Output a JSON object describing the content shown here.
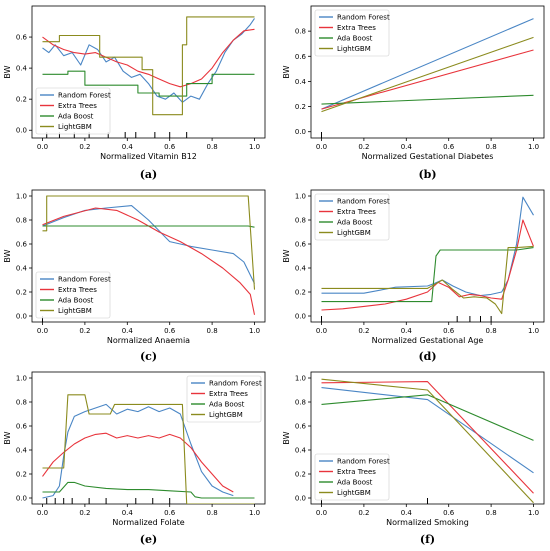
{
  "colors": {
    "Random Forest": "#4a86c5",
    "Extra Trees": "#e8343c",
    "Ada Boost": "#2e8b2e",
    "LightGBM": "#8b8b1e"
  },
  "chart_data": [
    {
      "id": "a",
      "type": "line",
      "caption": "(a)",
      "xlabel": "Normalized Vitamin B12",
      "ylabel": "BW",
      "xlim": [
        0,
        1
      ],
      "ylim": [
        -0.05,
        0.8
      ],
      "xticks": [
        "0.0",
        "0.2",
        "0.4",
        "0.6",
        "0.8",
        "1.0"
      ],
      "xtick_values": [
        0,
        0.2,
        0.4,
        0.6,
        0.8,
        1.0
      ],
      "yticks": [
        "0.0",
        "0.2",
        "0.4",
        "0.6"
      ],
      "ytick_values": [
        0,
        0.2,
        0.4,
        0.6
      ],
      "legend_position": "bottom-left",
      "rug": [
        0.02,
        0.08,
        0.15,
        0.22,
        0.31,
        0.39,
        0.44,
        0.53,
        0.6,
        0.68
      ],
      "series": [
        {
          "name": "Random Forest",
          "x": [
            0,
            0.03,
            0.06,
            0.1,
            0.14,
            0.18,
            0.22,
            0.26,
            0.3,
            0.34,
            0.38,
            0.42,
            0.46,
            0.5,
            0.54,
            0.58,
            0.62,
            0.66,
            0.7,
            0.74,
            0.78,
            0.82,
            0.86,
            0.9,
            0.94,
            0.98,
            1.0
          ],
          "y": [
            0.53,
            0.5,
            0.55,
            0.48,
            0.5,
            0.42,
            0.55,
            0.52,
            0.44,
            0.47,
            0.38,
            0.34,
            0.36,
            0.3,
            0.22,
            0.2,
            0.24,
            0.18,
            0.22,
            0.2,
            0.3,
            0.38,
            0.5,
            0.58,
            0.62,
            0.68,
            0.72
          ]
        },
        {
          "name": "Extra Trees",
          "x": [
            0,
            0.05,
            0.1,
            0.15,
            0.2,
            0.25,
            0.3,
            0.35,
            0.4,
            0.45,
            0.5,
            0.55,
            0.6,
            0.65,
            0.7,
            0.75,
            0.8,
            0.85,
            0.9,
            0.95,
            1.0
          ],
          "y": [
            0.6,
            0.55,
            0.52,
            0.5,
            0.49,
            0.5,
            0.47,
            0.44,
            0.42,
            0.38,
            0.36,
            0.33,
            0.3,
            0.28,
            0.3,
            0.33,
            0.4,
            0.5,
            0.58,
            0.64,
            0.65
          ]
        },
        {
          "name": "Ada Boost",
          "x": [
            0,
            0.12,
            0.12,
            0.2,
            0.2,
            0.45,
            0.45,
            0.55,
            0.55,
            0.68,
            0.68,
            0.8,
            0.8,
            1.0
          ],
          "y": [
            0.36,
            0.36,
            0.38,
            0.38,
            0.29,
            0.29,
            0.24,
            0.24,
            0.22,
            0.22,
            0.3,
            0.3,
            0.36,
            0.36
          ]
        },
        {
          "name": "LightGBM",
          "x": [
            0,
            0.08,
            0.08,
            0.27,
            0.27,
            0.47,
            0.47,
            0.52,
            0.52,
            0.66,
            0.66,
            0.68,
            0.68,
            1.0
          ],
          "y": [
            0.57,
            0.57,
            0.61,
            0.61,
            0.47,
            0.47,
            0.39,
            0.39,
            0.1,
            0.1,
            0.55,
            0.55,
            0.73,
            0.73
          ]
        }
      ]
    },
    {
      "id": "b",
      "type": "line",
      "caption": "(b)",
      "xlabel": "Normalized Gestational Diabetes",
      "ylabel": "BW",
      "xlim": [
        0,
        1
      ],
      "ylim": [
        -0.05,
        1.0
      ],
      "xticks": [
        "0.0",
        "0.2",
        "0.4",
        "0.6",
        "0.8",
        "1.0"
      ],
      "xtick_values": [
        0,
        0.2,
        0.4,
        0.6,
        0.8,
        1.0
      ],
      "yticks": [
        "0.0",
        "0.2",
        "0.4",
        "0.6",
        "0.8"
      ],
      "ytick_values": [
        0,
        0.2,
        0.4,
        0.6,
        0.8
      ],
      "legend_position": "top-left",
      "rug": [
        0.0
      ],
      "series": [
        {
          "name": "Random Forest",
          "x": [
            0,
            1
          ],
          "y": [
            0.18,
            0.9
          ]
        },
        {
          "name": "Extra Trees",
          "x": [
            0,
            1
          ],
          "y": [
            0.18,
            0.65
          ]
        },
        {
          "name": "Ada Boost",
          "x": [
            0,
            1
          ],
          "y": [
            0.22,
            0.29
          ]
        },
        {
          "name": "LightGBM",
          "x": [
            0,
            1
          ],
          "y": [
            0.16,
            0.75
          ]
        }
      ]
    },
    {
      "id": "c",
      "type": "line",
      "caption": "(c)",
      "xlabel": "Normalized Anaemia",
      "ylabel": "BW",
      "xlim": [
        0,
        1
      ],
      "ylim": [
        -0.05,
        1.05
      ],
      "xticks": [
        "0.0",
        "0.2",
        "0.4",
        "0.6",
        "0.8",
        "1.0"
      ],
      "xtick_values": [
        0,
        0.2,
        0.4,
        0.6,
        0.8,
        1.0
      ],
      "yticks": [
        "0.0",
        "0.2",
        "0.4",
        "0.6",
        "0.8",
        "1.0"
      ],
      "ytick_values": [
        0,
        0.2,
        0.4,
        0.6,
        0.8,
        1.0
      ],
      "legend_position": "bottom-left",
      "rug": [
        0.0
      ],
      "series": [
        {
          "name": "Random Forest",
          "x": [
            0,
            0.1,
            0.2,
            0.3,
            0.42,
            0.5,
            0.6,
            0.7,
            0.8,
            0.9,
            0.95,
            1.0
          ],
          "y": [
            0.75,
            0.82,
            0.88,
            0.9,
            0.92,
            0.8,
            0.62,
            0.58,
            0.55,
            0.52,
            0.45,
            0.27
          ]
        },
        {
          "name": "Extra Trees",
          "x": [
            0,
            0.1,
            0.25,
            0.35,
            0.45,
            0.55,
            0.65,
            0.75,
            0.85,
            0.93,
            0.98,
            1.0
          ],
          "y": [
            0.76,
            0.83,
            0.9,
            0.88,
            0.8,
            0.7,
            0.62,
            0.52,
            0.4,
            0.28,
            0.18,
            0.01
          ]
        },
        {
          "name": "Ada Boost",
          "x": [
            0,
            0.97,
            1.0
          ],
          "y": [
            0.75,
            0.75,
            0.74
          ]
        },
        {
          "name": "LightGBM",
          "x": [
            0,
            0.02,
            0.02,
            0.97,
            1.0
          ],
          "y": [
            0.71,
            0.71,
            1.0,
            1.0,
            0.22
          ]
        }
      ]
    },
    {
      "id": "d",
      "type": "line",
      "caption": "(d)",
      "xlabel": "Normalized Gestational Age",
      "ylabel": "BW",
      "xlim": [
        0,
        1
      ],
      "ylim": [
        -0.05,
        1.05
      ],
      "xticks": [
        "0.0",
        "0.2",
        "0.4",
        "0.6",
        "0.8",
        "1.0"
      ],
      "xtick_values": [
        0,
        0.2,
        0.4,
        0.6,
        0.8,
        1.0
      ],
      "yticks": [
        "0.0",
        "0.2",
        "0.4",
        "0.6",
        "0.8",
        "1.0"
      ],
      "ytick_values": [
        0,
        0.2,
        0.4,
        0.6,
        0.8,
        1.0
      ],
      "legend_position": "top-left",
      "rug": [
        0.0,
        0.64,
        0.7,
        0.75,
        0.8
      ],
      "series": [
        {
          "name": "Random Forest",
          "x": [
            0,
            0.2,
            0.35,
            0.5,
            0.53,
            0.57,
            0.62,
            0.68,
            0.75,
            0.8,
            0.85,
            0.88,
            0.92,
            0.95,
            1.0
          ],
          "y": [
            0.19,
            0.19,
            0.24,
            0.25,
            0.27,
            0.3,
            0.25,
            0.2,
            0.17,
            0.18,
            0.2,
            0.3,
            0.6,
            0.99,
            0.84
          ]
        },
        {
          "name": "Extra Trees",
          "x": [
            0,
            0.1,
            0.2,
            0.3,
            0.4,
            0.5,
            0.55,
            0.6,
            0.65,
            0.7,
            0.75,
            0.8,
            0.85,
            0.88,
            0.92,
            0.95,
            1.0
          ],
          "y": [
            0.05,
            0.06,
            0.08,
            0.1,
            0.14,
            0.2,
            0.28,
            0.24,
            0.16,
            0.18,
            0.17,
            0.15,
            0.14,
            0.3,
            0.55,
            0.8,
            0.58
          ]
        },
        {
          "name": "Ada Boost",
          "x": [
            0,
            0.52,
            0.54,
            0.56,
            0.9,
            0.92,
            1.0
          ],
          "y": [
            0.12,
            0.12,
            0.5,
            0.55,
            0.55,
            0.55,
            0.57
          ]
        },
        {
          "name": "LightGBM",
          "x": [
            0,
            0.5,
            0.53,
            0.57,
            0.62,
            0.67,
            0.72,
            0.78,
            0.82,
            0.85,
            0.88,
            0.92,
            1.0
          ],
          "y": [
            0.23,
            0.23,
            0.26,
            0.3,
            0.22,
            0.15,
            0.16,
            0.15,
            0.1,
            0.02,
            0.57,
            0.57,
            0.58
          ]
        }
      ]
    },
    {
      "id": "e",
      "type": "line",
      "caption": "(e)",
      "xlabel": "Normalized Folate",
      "ylabel": "BW",
      "xlim": [
        0,
        1
      ],
      "ylim": [
        -0.05,
        1.05
      ],
      "xticks": [
        "0.0",
        "0.2",
        "0.4",
        "0.6",
        "0.8",
        "1.0"
      ],
      "xtick_values": [
        0,
        0.2,
        0.4,
        0.6,
        0.8,
        1.0
      ],
      "yticks": [
        "0.0",
        "0.2",
        "0.4",
        "0.6",
        "0.8",
        "1.0"
      ],
      "ytick_values": [
        0,
        0.2,
        0.4,
        0.6,
        0.8,
        1.0
      ],
      "legend_position": "top-right",
      "rug": [
        0.02,
        0.06,
        0.1,
        0.14,
        0.22,
        0.3,
        0.44,
        0.52,
        0.6
      ],
      "series": [
        {
          "name": "Random Forest",
          "x": [
            0,
            0.05,
            0.08,
            0.1,
            0.12,
            0.15,
            0.2,
            0.25,
            0.3,
            0.35,
            0.4,
            0.45,
            0.5,
            0.55,
            0.6,
            0.65,
            0.7,
            0.75,
            0.8,
            0.85,
            0.9
          ],
          "y": [
            0.0,
            0.02,
            0.1,
            0.35,
            0.55,
            0.68,
            0.72,
            0.75,
            0.78,
            0.7,
            0.74,
            0.72,
            0.76,
            0.72,
            0.75,
            0.7,
            0.45,
            0.22,
            0.1,
            0.05,
            0.02
          ]
        },
        {
          "name": "Extra Trees",
          "x": [
            0,
            0.05,
            0.1,
            0.15,
            0.2,
            0.25,
            0.3,
            0.35,
            0.4,
            0.45,
            0.5,
            0.55,
            0.6,
            0.65,
            0.7,
            0.75,
            0.8,
            0.85,
            0.9
          ],
          "y": [
            0.18,
            0.3,
            0.38,
            0.45,
            0.5,
            0.53,
            0.54,
            0.5,
            0.52,
            0.5,
            0.52,
            0.5,
            0.53,
            0.5,
            0.42,
            0.3,
            0.2,
            0.1,
            0.05
          ]
        },
        {
          "name": "Ada Boost",
          "x": [
            0,
            0.08,
            0.12,
            0.15,
            0.2,
            0.3,
            0.4,
            0.5,
            0.6,
            0.7,
            0.72,
            0.75,
            0.8,
            0.9,
            1.0
          ],
          "y": [
            0.05,
            0.05,
            0.13,
            0.13,
            0.1,
            0.08,
            0.07,
            0.07,
            0.06,
            0.05,
            0.01,
            0.0,
            0.0,
            0.0,
            0.0
          ]
        },
        {
          "name": "LightGBM",
          "x": [
            0,
            0.1,
            0.12,
            0.2,
            0.22,
            0.32,
            0.34,
            0.66,
            0.68,
            1.0
          ],
          "y": [
            0.25,
            0.25,
            0.86,
            0.86,
            0.7,
            0.7,
            0.78,
            0.78,
            -0.05,
            -0.05
          ]
        }
      ]
    },
    {
      "id": "f",
      "type": "line",
      "caption": "(f)",
      "xlabel": "Normalized Smoking",
      "ylabel": "BW",
      "xlim": [
        0,
        1
      ],
      "ylim": [
        -0.05,
        1.05
      ],
      "xticks": [
        "0.0",
        "0.2",
        "0.4",
        "0.6",
        "0.8",
        "1.0"
      ],
      "xtick_values": [
        0,
        0.2,
        0.4,
        0.6,
        0.8,
        1.0
      ],
      "yticks": [
        "0.0",
        "0.2",
        "0.4",
        "0.6",
        "0.8",
        "1.0"
      ],
      "ytick_values": [
        0,
        0.2,
        0.4,
        0.6,
        0.8,
        1.0
      ],
      "legend_position": "bottom-left",
      "rug": [
        0.0,
        0.5
      ],
      "series": [
        {
          "name": "Random Forest",
          "x": [
            0,
            0.5,
            1.0
          ],
          "y": [
            0.92,
            0.82,
            0.21
          ]
        },
        {
          "name": "Extra Trees",
          "x": [
            0,
            0.5,
            1.0
          ],
          "y": [
            0.96,
            0.97,
            0.04
          ]
        },
        {
          "name": "Ada Boost",
          "x": [
            0,
            0.5,
            1.0
          ],
          "y": [
            0.78,
            0.86,
            0.48
          ]
        },
        {
          "name": "LightGBM",
          "x": [
            0,
            0.5,
            1.0
          ],
          "y": [
            0.99,
            0.9,
            -0.04
          ]
        }
      ]
    }
  ]
}
